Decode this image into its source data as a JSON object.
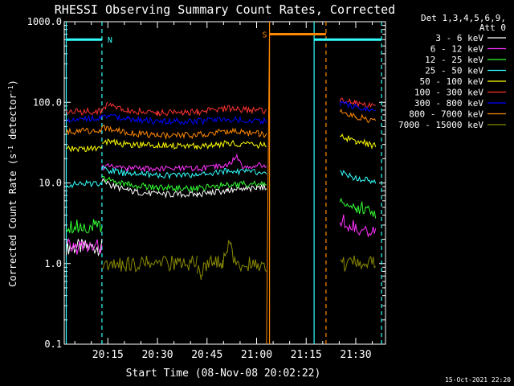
{
  "chart_data": {
    "type": "line",
    "title": "RHESSI Observing Summary Count Rates, Corrected",
    "xlabel": "Start Time (08-Nov-08 20:02:22)",
    "ylabel": "Corrected Count Rate (s⁻¹ detector⁻¹)",
    "ylabel_parts": [
      "Corrected Count Rate (s",
      "-1",
      " detector",
      "-1",
      ")"
    ],
    "yscale": "log",
    "ylim": [
      0.1,
      1000
    ],
    "xlim_minutes": [
      20.03,
      21.65
    ],
    "x_unit": "hours (20.50 = 20:30)",
    "yticks": [
      {
        "value": 0.1,
        "label": "0.1"
      },
      {
        "value": 1,
        "label": "1.0"
      },
      {
        "value": 10,
        "label": "10.0"
      },
      {
        "value": 100,
        "label": "100.0"
      },
      {
        "value": 1000,
        "label": "1000.0"
      }
    ],
    "xticks": [
      {
        "value": 20.25,
        "label": "20:15"
      },
      {
        "value": 20.5,
        "label": "20:30"
      },
      {
        "value": 20.75,
        "label": "20:45"
      },
      {
        "value": 21.0,
        "label": "21:00"
      },
      {
        "value": 21.25,
        "label": "21:15"
      },
      {
        "value": 21.5,
        "label": "21:30"
      }
    ],
    "legend_header": [
      "Det 1,3,4,5,6,9,",
      "Att 0"
    ],
    "legend_position": "right",
    "series": [
      {
        "name": "3 - 6 keV",
        "color": "#ffffff",
        "segments": [
          {
            "x": [
              20.04,
              20.22
            ],
            "y": [
              1.6,
              1.6
            ]
          },
          {
            "x": [
              20.22,
              20.26,
              20.35,
              20.5,
              20.7,
              20.85,
              21.0,
              21.05
            ],
            "y": [
              11,
              9.5,
              8.0,
              7.2,
              7.2,
              8.0,
              8.5,
              9.0
            ]
          }
        ]
      },
      {
        "name": "6 - 12 keV",
        "color": "#ff33ff",
        "segments": [
          {
            "x": [
              20.04,
              20.22
            ],
            "y": [
              1.6,
              1.6
            ]
          },
          {
            "x": [
              20.22,
              20.35,
              20.5,
              20.7,
              20.85,
              20.9,
              20.93,
              21.05
            ],
            "y": [
              16,
              15,
              15,
              15,
              16,
              22,
              16,
              16.5
            ]
          },
          {
            "x": [
              21.42,
              21.5,
              21.6
            ],
            "y": [
              3.3,
              3.0,
              2.2
            ]
          }
        ]
      },
      {
        "name": "12 - 25 keV",
        "color": "#33ff33",
        "segments": [
          {
            "x": [
              20.04,
              20.22
            ],
            "y": [
              3.0,
              2.8
            ]
          },
          {
            "x": [
              20.22,
              20.35,
              20.5,
              20.7,
              20.85,
              21.05
            ],
            "y": [
              11.5,
              9.5,
              8.8,
              8.5,
              9.5,
              10.0
            ]
          },
          {
            "x": [
              21.42,
              21.5,
              21.6
            ],
            "y": [
              6.0,
              5.0,
              4.3
            ]
          }
        ]
      },
      {
        "name": "25 - 50 keV",
        "color": "#33ffff",
        "segments": [
          {
            "x": [
              20.04,
              20.22
            ],
            "y": [
              9.5,
              10.0
            ]
          },
          {
            "x": [
              20.22,
              20.35,
              20.5,
              20.7,
              20.85,
              21.05
            ],
            "y": [
              15,
              13,
              12.5,
              12.5,
              14,
              13.5
            ]
          },
          {
            "x": [
              21.42,
              21.5,
              21.6
            ],
            "y": [
              13.5,
              11.5,
              10.5
            ]
          }
        ]
      },
      {
        "name": "50 - 100 keV",
        "color": "#ffff00",
        "segments": [
          {
            "x": [
              20.04,
              20.22
            ],
            "y": [
              26,
              27
            ]
          },
          {
            "x": [
              20.22,
              20.35,
              20.5,
              20.7,
              20.85,
              21.05
            ],
            "y": [
              33,
              30,
              29,
              28.5,
              31,
              29
            ]
          },
          {
            "x": [
              21.42,
              21.5,
              21.6
            ],
            "y": [
              38,
              33,
              29
            ]
          }
        ]
      },
      {
        "name": "100 - 300 keV",
        "color": "#ff3333",
        "segments": [
          {
            "x": [
              20.04,
              20.22,
              20.25
            ],
            "y": [
              76,
              78,
              95
            ]
          },
          {
            "x": [
              20.25,
              20.35,
              20.5,
              20.7,
              20.85,
              21.05
            ],
            "y": [
              92,
              80,
              73,
              76,
              84,
              78
            ]
          },
          {
            "x": [
              21.42,
              21.5,
              21.6
            ],
            "y": [
              112,
              98,
              88
            ]
          }
        ]
      },
      {
        "name": "300 - 800 keV",
        "color": "#0000ff",
        "segments": [
          {
            "x": [
              20.04,
              20.22
            ],
            "y": [
              62,
              64
            ]
          },
          {
            "x": [
              20.22,
              20.35,
              20.5,
              20.7,
              20.85,
              21.05
            ],
            "y": [
              70,
              62,
              58,
              58,
              62,
              58
            ]
          },
          {
            "x": [
              21.42,
              21.5,
              21.6
            ],
            "y": [
              98,
              88,
              80
            ]
          }
        ]
      },
      {
        "name": "800 - 7000 keV",
        "color": "#ff8800",
        "segments": [
          {
            "x": [
              20.04,
              20.22
            ],
            "y": [
              43,
              45
            ]
          },
          {
            "x": [
              20.22,
              20.35,
              20.5,
              20.7,
              20.85,
              21.05
            ],
            "y": [
              48,
              42,
              39,
              39,
              44,
              40
            ]
          },
          {
            "x": [
              21.05,
              21.065
            ],
            "y": [
              0.1,
              1000
            ]
          },
          {
            "x": [
              21.065,
              21.35
            ],
            "y": [
              700,
              700
            ]
          },
          {
            "x": [
              21.42,
              21.5,
              21.6
            ],
            "y": [
              78,
              67,
              58
            ]
          }
        ]
      },
      {
        "name": "7000 - 15000 keV",
        "color": "#888800",
        "segments": [
          {
            "x": [
              20.22,
              20.7
            ],
            "y": [
              1.0,
              1.0
            ]
          },
          {
            "x": [
              20.7,
              20.72,
              20.74,
              20.83,
              20.87,
              20.89,
              21.05
            ],
            "y": [
              0.9,
              0.75,
              1.0,
              1.0,
              2.0,
              1.0,
              1.0
            ]
          },
          {
            "x": [
              21.42,
              21.6
            ],
            "y": [
              1.0,
              1.0
            ]
          }
        ]
      }
    ],
    "flags": [
      {
        "label": "N",
        "color": "#33ffff",
        "x_start": 20.04,
        "x_end": 20.22,
        "y": 600
      },
      {
        "label": "S",
        "color": "#ff8800",
        "x_start": 21.065,
        "x_end": 21.35,
        "y": 700
      },
      {
        "label": "",
        "color": "#33ffff",
        "x_start": 21.29,
        "x_end": 21.63,
        "y": 600
      }
    ],
    "markers": [
      {
        "x": 20.04,
        "color": "#33ffff",
        "style": "solid"
      },
      {
        "x": 20.22,
        "color": "#33ffff",
        "style": "dashed"
      },
      {
        "x": 21.065,
        "color": "#ff8800",
        "style": "solid"
      },
      {
        "x": 21.29,
        "color": "#33ffff",
        "style": "solid"
      },
      {
        "x": 21.35,
        "color": "#ff8800",
        "style": "dashed"
      },
      {
        "x": 21.63,
        "color": "#33ffff",
        "style": "dashed"
      }
    ],
    "timestamp": "15-Oct-2021 22:20"
  }
}
